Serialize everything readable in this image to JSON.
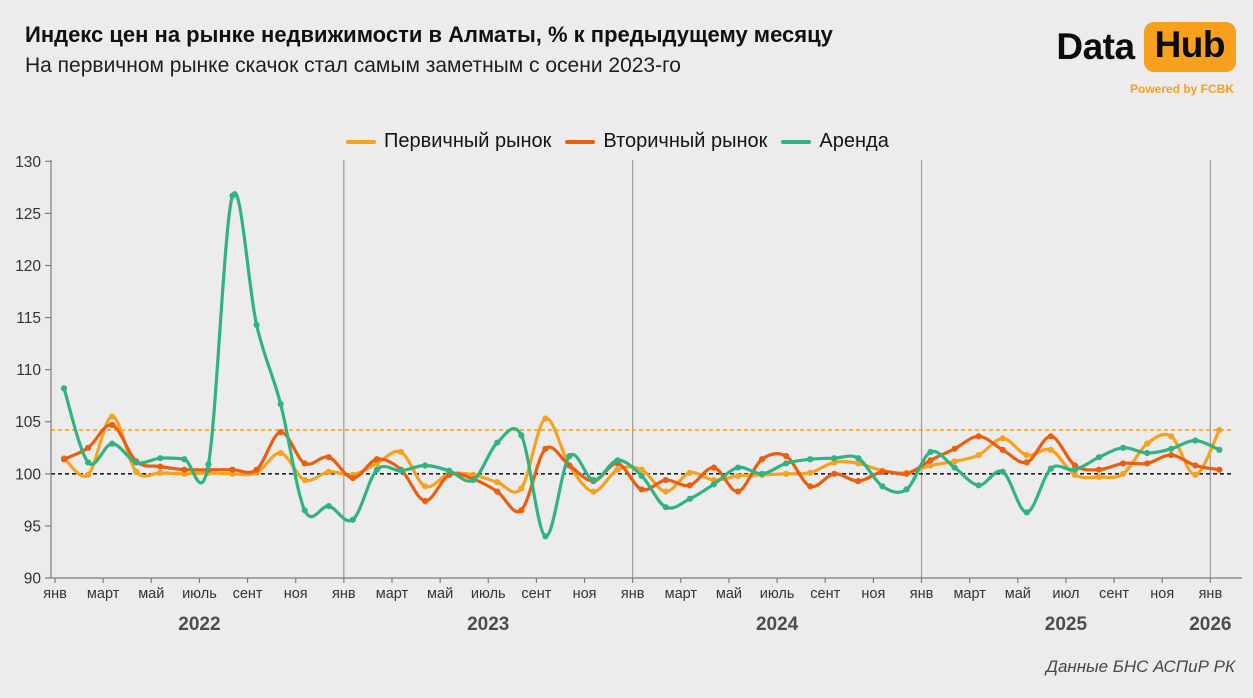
{
  "header": {
    "title": "Индекс цен на рынке недвижимости в Алматы, % к предыдущему месяцу",
    "subtitle": "На первичном рынке скачок стал самым заметным с осени 2023-го"
  },
  "logo": {
    "word_data": "Data",
    "word_hub": "Hub",
    "powered_by": "Powered by FCBK",
    "accent_color": "#F7A01E"
  },
  "source_note": "Данные БНС АСПиР РК",
  "chart_data": {
    "type": "line",
    "title": "Индекс цен на рынке недвижимости в Алматы, % к предыдущему месяцу",
    "subtitle": "На первичном рынке скачок стал самым заметным с осени 2023-го",
    "ylim": [
      90,
      130
    ],
    "y_ticks": [
      90,
      95,
      100,
      105,
      110,
      115,
      120,
      125,
      130
    ],
    "x_tick_labels": [
      "янв",
      "март",
      "май",
      "июль",
      "сент",
      "ноя",
      "янв",
      "март",
      "май",
      "июль",
      "сент",
      "ноя",
      "янв",
      "март",
      "май",
      "июль",
      "сент",
      "ноя",
      "янв",
      "март",
      "май",
      "июл",
      "сент",
      "ноя",
      "янв"
    ],
    "year_labels": [
      {
        "label": "2022",
        "tick_index": 3
      },
      {
        "label": "2023",
        "tick_index": 9
      },
      {
        "label": "2024",
        "tick_index": 15
      },
      {
        "label": "2025",
        "tick_index": 21
      },
      {
        "label": "2026",
        "tick_index": 24
      }
    ],
    "x_range_note": "ежемесячно, янв 2022 — янв 2026",
    "legend_position": "top",
    "grid": "вертикальные линии на январь каждого года",
    "reference_lines": [
      {
        "value": 104.2,
        "color": "#F6A11F",
        "style": "dashed",
        "meaning": "уровень последнего значения первичного рынка"
      },
      {
        "value": 100.0,
        "color": "#222222",
        "style": "dashed",
        "meaning": "100 = без изменений"
      }
    ],
    "series": [
      {
        "name": "Первичный рынок",
        "color": "#F6A11F",
        "values": [
          101.5,
          99.9,
          105.5,
          100.2,
          100.1,
          100.0,
          100.1,
          100.0,
          100.1,
          102.0,
          99.4,
          100.2,
          99.9,
          101.0,
          102.1,
          98.8,
          100.0,
          99.9,
          99.2,
          98.6,
          105.3,
          100.8,
          98.3,
          100.4,
          100.4,
          98.3,
          100.1,
          99.4,
          99.8,
          99.9,
          100.0,
          100.1,
          101.1,
          101.0,
          100.3,
          100.1,
          100.8,
          101.2,
          101.8,
          103.4,
          101.8,
          102.3,
          99.9,
          99.7,
          100.0,
          102.9,
          103.6,
          99.9,
          104.2
        ]
      },
      {
        "name": "Вторичный рынок",
        "color": "#EB5E0F",
        "values": [
          101.4,
          102.5,
          104.7,
          101.2,
          100.7,
          100.4,
          100.4,
          100.4,
          100.4,
          104.0,
          101.0,
          101.6,
          99.6,
          101.4,
          100.4,
          97.4,
          99.9,
          99.5,
          98.3,
          96.5,
          102.4,
          100.8,
          99.3,
          101.0,
          98.5,
          99.4,
          98.9,
          100.6,
          98.3,
          101.4,
          101.7,
          98.8,
          100.0,
          99.3,
          100.2,
          100.0,
          101.3,
          102.4,
          103.6,
          102.3,
          101.1,
          103.6,
          100.8,
          100.4,
          101.0,
          101.0,
          101.8,
          100.8,
          100.4
        ]
      },
      {
        "name": "Аренда",
        "color": "#2FB380",
        "values": [
          108.2,
          101.1,
          102.9,
          101.1,
          101.5,
          101.4,
          100.9,
          126.7,
          114.3,
          106.7,
          96.5,
          96.9,
          95.6,
          100.4,
          100.3,
          100.8,
          100.3,
          99.4,
          103.0,
          103.7,
          94.0,
          101.7,
          99.4,
          101.3,
          99.8,
          96.8,
          97.6,
          99.0,
          100.6,
          100.0,
          101.0,
          101.4,
          101.5,
          101.5,
          98.8,
          98.5,
          102.1,
          100.6,
          98.9,
          100.2,
          96.3,
          100.5,
          100.4,
          101.6,
          102.5,
          102.0,
          102.4,
          103.2,
          102.3
        ]
      }
    ]
  }
}
